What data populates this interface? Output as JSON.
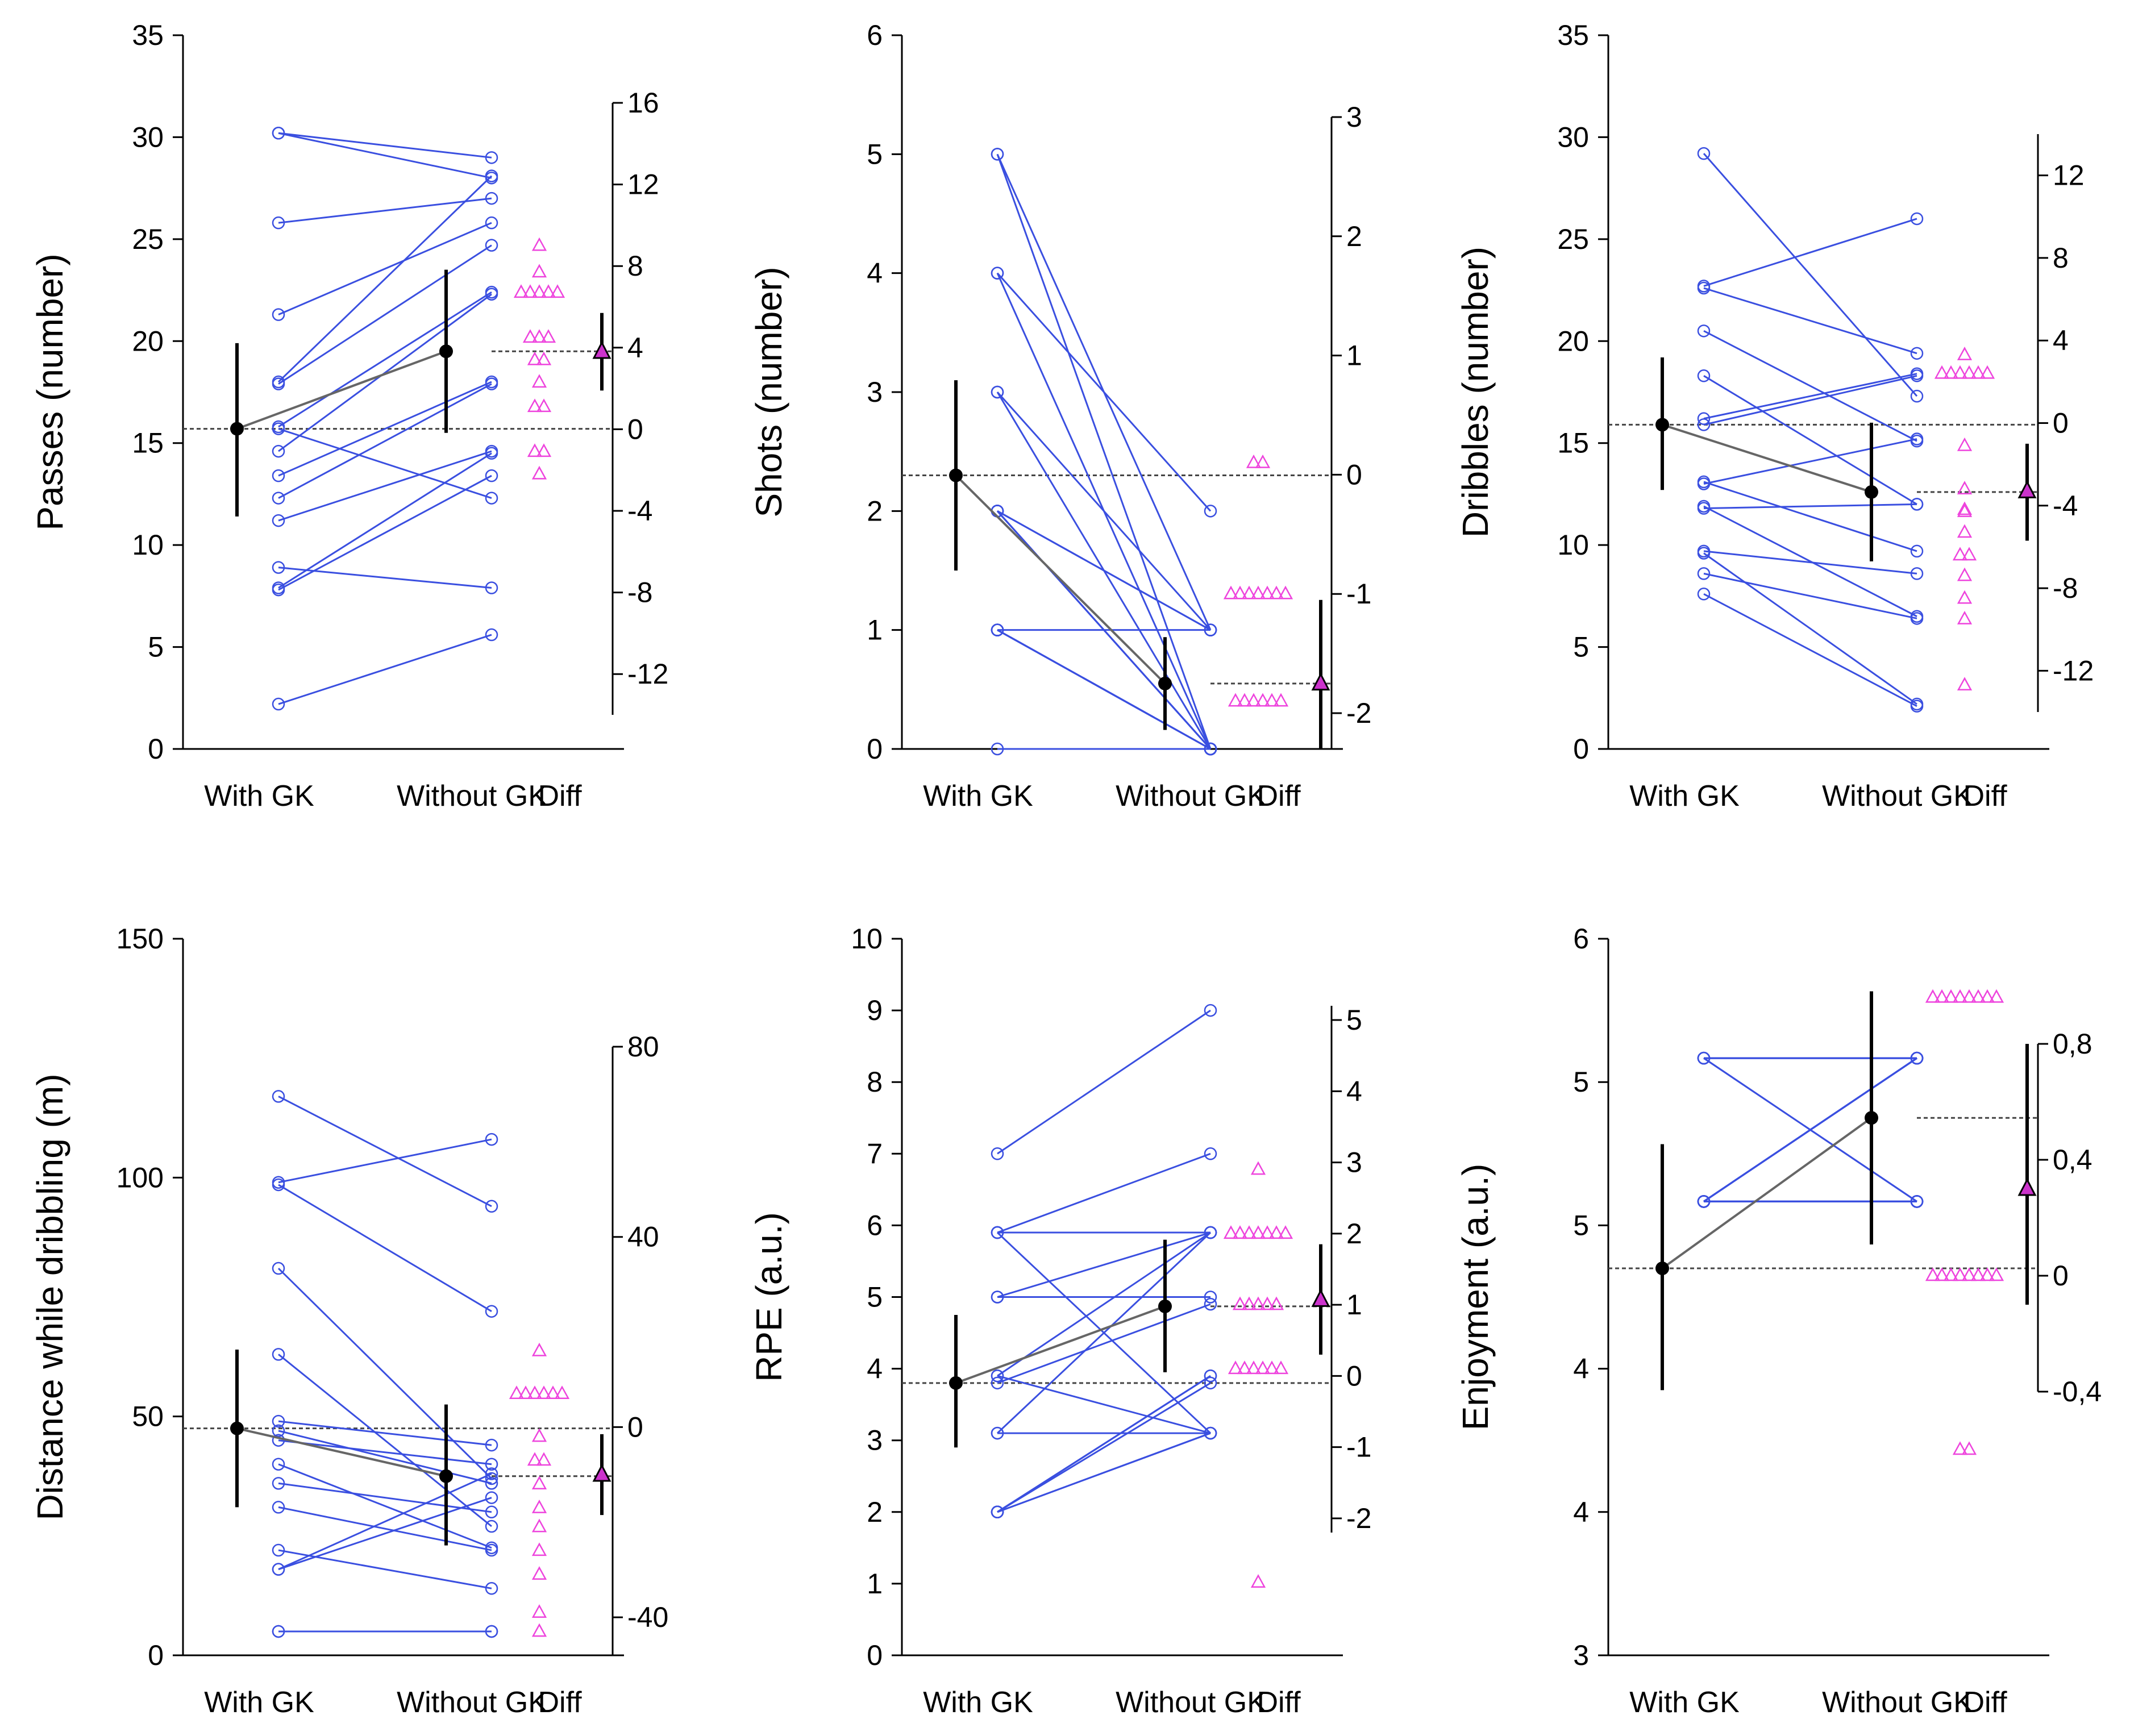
{
  "colors": {
    "paired": "#3a4fe0",
    "diff": "#ee44dd",
    "diff_mean": "#cc33cc",
    "mean": "#000000"
  },
  "chart_data": [
    {
      "type": "paired-dot",
      "ylabel": "Passes (number)",
      "categories": [
        "With GK",
        "Without GK",
        "Diff"
      ],
      "ylim": [
        0,
        35
      ],
      "yticks": [
        "0",
        "5",
        "10",
        "15",
        "20",
        "25",
        "30",
        "35"
      ],
      "diff_ylim": [
        -14,
        16
      ],
      "diff_yticks": [
        "-12",
        "-8",
        "-4",
        "0",
        "4",
        "8",
        "12",
        "16"
      ],
      "pairs": [
        [
          30.2,
          28
        ],
        [
          30.2,
          29
        ],
        [
          25.8,
          27
        ],
        [
          21.3,
          25.8
        ],
        [
          18,
          28.1
        ],
        [
          17.9,
          24.7
        ],
        [
          15.8,
          22.4
        ],
        [
          14.6,
          22.3
        ],
        [
          13.4,
          18
        ],
        [
          12.3,
          17.9
        ],
        [
          11.2,
          14.6
        ],
        [
          8.9,
          7.9
        ],
        [
          7.9,
          14.5
        ],
        [
          7.8,
          13.4
        ],
        [
          2.2,
          5.6
        ],
        [
          15.7,
          12.3
        ]
      ],
      "diffs": [
        9,
        7.7,
        6.7,
        6.7,
        6.7,
        6.7,
        6.7,
        4.5,
        4.5,
        4.5,
        3.4,
        3.4,
        2.3,
        1.1,
        1.1,
        -1.1,
        -1.1,
        -2.2
      ],
      "mean_with": 15.7,
      "ci_with": [
        11.4,
        19.9
      ],
      "mean_without": 19.5,
      "ci_without": [
        15.5,
        23.5
      ],
      "mean_diff": 3.8,
      "ci_diff": [
        1.9,
        5.7
      ]
    },
    {
      "type": "paired-dot",
      "ylabel": "Shots (number)",
      "categories": [
        "With GK",
        "Without GK",
        "Diff"
      ],
      "ylim": [
        0,
        6
      ],
      "yticks": [
        "0",
        "1",
        "2",
        "3",
        "4",
        "5",
        "6"
      ],
      "diff_ylim": [
        -2.3,
        3
      ],
      "diff_yticks": [
        "-2",
        "-1",
        "0",
        "1",
        "2",
        "3"
      ],
      "pairs": [
        [
          5,
          1
        ],
        [
          5,
          0
        ],
        [
          4,
          2
        ],
        [
          4,
          0
        ],
        [
          3,
          1
        ],
        [
          3,
          0
        ],
        [
          2,
          1
        ],
        [
          2,
          0
        ],
        [
          2,
          0
        ],
        [
          2,
          0
        ],
        [
          1,
          1
        ],
        [
          1,
          0
        ],
        [
          1,
          0
        ],
        [
          1,
          0
        ],
        [
          1,
          0
        ],
        [
          1,
          0
        ],
        [
          0,
          0
        ],
        [
          2,
          1
        ]
      ],
      "diffs": [
        0.1,
        0.1,
        -1,
        -1,
        -1,
        -1,
        -1,
        -1,
        -1,
        -1.9,
        -1.9,
        -1.9,
        -1.9,
        -1.9,
        -1.9
      ],
      "mean_with": 2.3,
      "ci_with": [
        1.5,
        3.1
      ],
      "mean_without": 0.55,
      "ci_without": [
        0.16,
        0.94
      ],
      "mean_diff": -1.75,
      "ci_diff": [
        -2.3,
        -1.05
      ]
    },
    {
      "type": "paired-dot",
      "ylabel": "Dribbles (number)",
      "categories": [
        "With GK",
        "Without GK",
        "Diff"
      ],
      "ylim": [
        0,
        35
      ],
      "yticks": [
        "0",
        "5",
        "10",
        "15",
        "20",
        "25",
        "30",
        "35"
      ],
      "diff_ylim": [
        -14,
        14
      ],
      "diff_yticks": [
        "-12",
        "-8",
        "-4",
        "0",
        "4",
        "8",
        "12"
      ],
      "pairs": [
        [
          29.2,
          17.3
        ],
        [
          22.7,
          26
        ],
        [
          22.6,
          19.4
        ],
        [
          20.5,
          15.1
        ],
        [
          18.3,
          12
        ],
        [
          16.2,
          18.4
        ],
        [
          13.1,
          9.7
        ],
        [
          13,
          15.2
        ],
        [
          11.9,
          6.5
        ],
        [
          11.8,
          12
        ],
        [
          9.7,
          8.6
        ],
        [
          9.6,
          2.2
        ],
        [
          8.6,
          6.4
        ],
        [
          7.6,
          2.1
        ],
        [
          15.9,
          18.3
        ]
      ],
      "diffs": [
        3.3,
        2.4,
        2.4,
        2.4,
        2.4,
        2.4,
        2.4,
        -1.1,
        -3.2,
        -4.2,
        -4.3,
        -5.3,
        -6.4,
        -6.4,
        -7.4,
        -8.5,
        -9.5,
        -12.7
      ],
      "mean_with": 15.9,
      "ci_with": [
        12.7,
        19.2
      ],
      "mean_without": 12.6,
      "ci_without": [
        9.2,
        16.0
      ],
      "mean_diff": -3.3,
      "ci_diff": [
        -5.7,
        -1.0
      ]
    },
    {
      "type": "paired-dot",
      "ylabel": "Distance while dribbling (m)",
      "categories": [
        "With GK",
        "Without GK",
        "Diff"
      ],
      "ylim": [
        0,
        150
      ],
      "yticks": [
        "0",
        "50",
        "100",
        "150"
      ],
      "diff_ylim": [
        -48,
        80
      ],
      "diff_yticks": [
        "-40",
        "0",
        "40",
        "80"
      ],
      "pairs": [
        [
          117,
          94
        ],
        [
          99,
          108
        ],
        [
          98.5,
          72
        ],
        [
          81,
          37
        ],
        [
          63,
          27
        ],
        [
          49,
          44
        ],
        [
          45,
          40
        ],
        [
          40,
          22.5
        ],
        [
          36,
          30
        ],
        [
          31,
          22
        ],
        [
          22,
          14
        ],
        [
          18,
          38
        ],
        [
          18,
          33
        ],
        [
          5,
          5
        ],
        [
          5,
          5
        ],
        [
          47,
          36
        ]
      ],
      "diffs": [
        16,
        7,
        7,
        7,
        7,
        7,
        7,
        -2,
        -7,
        -7,
        -12,
        -17,
        -21,
        -26,
        -31,
        -39,
        -43
      ],
      "mean_with": 47.5,
      "ci_with": [
        31,
        64
      ],
      "mean_without": 37.5,
      "ci_without": [
        23,
        52.5
      ],
      "mean_diff": -10,
      "ci_diff": [
        -18.5,
        -1.5
      ]
    },
    {
      "type": "paired-dot",
      "ylabel": "RPE (a.u.)",
      "categories": [
        "With GK",
        "Without GK",
        "Diff"
      ],
      "ylim": [
        0,
        10
      ],
      "yticks": [
        "0",
        "1",
        "2",
        "3",
        "4",
        "5",
        "6",
        "7",
        "8",
        "9",
        "10"
      ],
      "diff_ylim": [
        -2.2,
        5.2
      ],
      "diff_yticks": [
        "-2",
        "-1",
        "0",
        "1",
        "2",
        "3",
        "4",
        "5"
      ],
      "pairs": [
        [
          7,
          9
        ],
        [
          5.9,
          7
        ],
        [
          5.9,
          5.9
        ],
        [
          5.9,
          3.1
        ],
        [
          5,
          5.9
        ],
        [
          5,
          5
        ],
        [
          3.9,
          5.9
        ],
        [
          3.9,
          3.1
        ],
        [
          3.1,
          3.1
        ],
        [
          3.1,
          5.9
        ],
        [
          2,
          3.9
        ],
        [
          2,
          3.9
        ],
        [
          2,
          3.1
        ],
        [
          2,
          3.1
        ],
        [
          2,
          3.8
        ],
        [
          3.8,
          4.9
        ]
      ],
      "diffs": [
        2.9,
        2,
        2,
        2,
        2,
        2,
        2,
        2,
        1,
        1,
        1,
        1,
        1,
        0.1,
        0.1,
        0.1,
        0.1,
        0.1,
        0.1,
        -2.9
      ],
      "mean_with": 3.8,
      "ci_with": [
        2.9,
        4.75
      ],
      "mean_without": 4.87,
      "ci_without": [
        3.95,
        5.8
      ],
      "mean_diff": 1.07,
      "ci_diff": [
        0.3,
        1.85
      ]
    },
    {
      "type": "paired-dot",
      "ylabel": "Enjoyment (a.u.)",
      "categories": [
        "With GK",
        "Without GK",
        "Diff"
      ],
      "ylim": [
        3,
        6
      ],
      "yticks": [
        "3",
        "4",
        "4",
        "5",
        "5",
        "6"
      ],
      "diff_ylim": [
        -0.4,
        0.8
      ],
      "diff_yticks": [
        "-0,4",
        "0",
        "0,4",
        "0,8"
      ],
      "pairs": [
        [
          5.5,
          5.5
        ],
        [
          5.5,
          5.5
        ],
        [
          5.5,
          5.5
        ],
        [
          5.5,
          5.5
        ],
        [
          5.5,
          4.9
        ],
        [
          5.5,
          4.9
        ],
        [
          4.9,
          5.5
        ],
        [
          4.9,
          5.5
        ],
        [
          4.9,
          5.5
        ],
        [
          4.9,
          5.5
        ],
        [
          4.9,
          5.5
        ],
        [
          4.9,
          5.5
        ],
        [
          4.9,
          5.5
        ],
        [
          4.9,
          5.5
        ],
        [
          4.9,
          4.9
        ],
        [
          4.9,
          4.9
        ],
        [
          4.9,
          4.9
        ],
        [
          4.9,
          4.9
        ],
        [
          4.9,
          4.9
        ],
        [
          4.9,
          4.9
        ]
      ],
      "diffs": [
        0.96,
        0.96,
        0.96,
        0.96,
        0.96,
        0.96,
        0.96,
        0.96,
        0,
        0,
        0,
        0,
        0,
        0,
        0,
        0,
        -0.6,
        -0.6
      ],
      "mean_with": 4.62,
      "ci_with": [
        4.11,
        5.14
      ],
      "mean_without": 5.25,
      "ci_without": [
        4.72,
        5.78
      ],
      "mean_diff": 0.3,
      "ci_diff": [
        -0.1,
        0.8
      ]
    }
  ]
}
